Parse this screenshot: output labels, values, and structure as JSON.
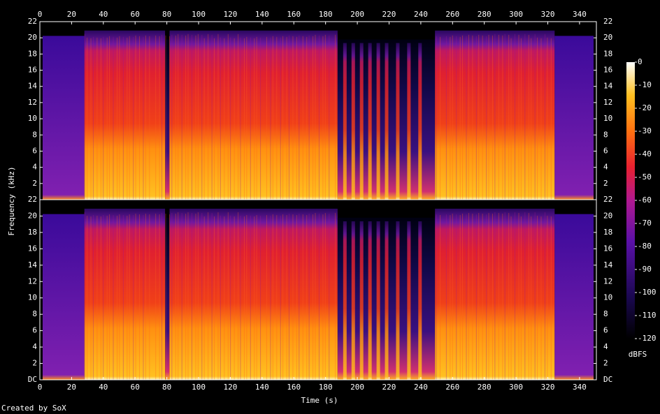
{
  "x_label": "Time (s)",
  "y_label": "Frequency (kHz)",
  "credit": "Created by SoX",
  "colorbar": {
    "label": "dBFS",
    "lim": [
      -120,
      0
    ],
    "ticks": [
      0,
      -10,
      -20,
      -30,
      -40,
      -50,
      -60,
      -70,
      -80,
      -90,
      -100,
      -110,
      -120
    ]
  },
  "chart_data": [
    {
      "type": "spectrogram",
      "xlim": [
        0,
        350.6
      ],
      "xticks": [
        0,
        20,
        40,
        60,
        80,
        100,
        120,
        140,
        160,
        180,
        200,
        220,
        240,
        260,
        280,
        300,
        320,
        340
      ],
      "ylim": [
        0,
        22
      ],
      "yticks": [
        2,
        4,
        6,
        8,
        10,
        12,
        14,
        16,
        18,
        20,
        22
      ],
      "xtick_side": "top"
    },
    {
      "type": "spectrogram",
      "xlim": [
        0,
        350.6
      ],
      "xticks": [
        0,
        20,
        40,
        60,
        80,
        100,
        120,
        140,
        160,
        180,
        200,
        220,
        240,
        260,
        280,
        300,
        320,
        340
      ],
      "ylim": [
        0,
        22
      ],
      "yticks": [
        {
          "value": 0,
          "label": "DC"
        },
        2,
        4,
        6,
        8,
        10,
        12,
        14,
        16,
        18,
        20,
        22
      ],
      "xtick_side": "bottom"
    }
  ]
}
